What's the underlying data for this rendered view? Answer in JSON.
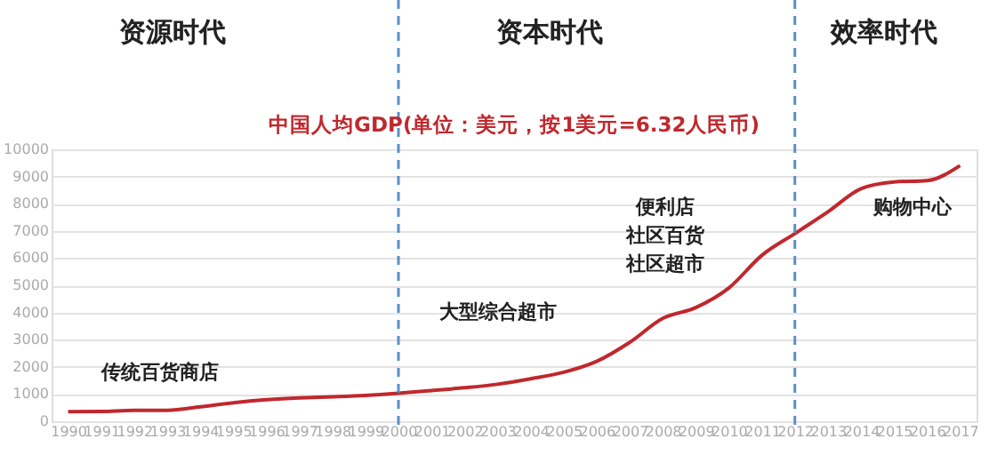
{
  "chart_data": {
    "type": "line",
    "title": "中国人均GDP(单位：美元，按1美元=6.32人民币)",
    "categories": [
      "1990",
      "1991",
      "1992",
      "1993",
      "1994",
      "1995",
      "1996",
      "1997",
      "1998",
      "1999",
      "2000",
      "2001",
      "2002",
      "2003",
      "2004",
      "2005",
      "2006",
      "2007",
      "2008",
      "2009",
      "2010",
      "2011",
      "2012",
      "2013",
      "2014",
      "2015",
      "2016",
      "2017"
    ],
    "series": [
      {
        "color": "#c0282d",
        "values": [
          350,
          360,
          400,
          400,
          530,
          680,
          790,
          860,
          900,
          950,
          1030,
          1130,
          1230,
          1360,
          1560,
          1800,
          2200,
          2900,
          3780,
          4180,
          4900,
          6100,
          6900,
          7700,
          8550,
          8800,
          8850,
          9400
        ]
      }
    ],
    "ylim": [
      0,
      10000
    ],
    "yticks": [
      0,
      1000,
      2000,
      3000,
      4000,
      5000,
      6000,
      7000,
      8000,
      9000,
      10000
    ],
    "grid": "y",
    "ref_lines": [
      {
        "axis": "x",
        "value": "2000",
        "color": "#5b8fc7",
        "line_style": "dashed"
      },
      {
        "axis": "x",
        "value": "2012",
        "color": "#5b8fc7",
        "line_style": "dashed"
      }
    ],
    "annotations": [
      "资源时代",
      "资本时代",
      "效率时代",
      "传统百货商店",
      "大型综合超市",
      "便利店",
      "社区百货",
      "社区超市",
      "购物中心"
    ],
    "marker": "none",
    "line_style": "solid"
  }
}
